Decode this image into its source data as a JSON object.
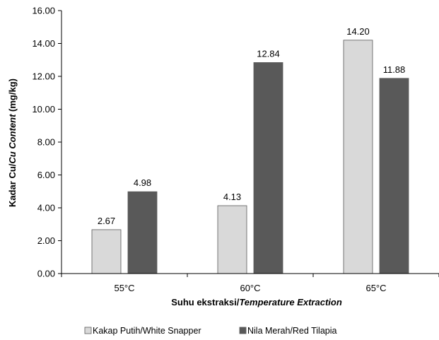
{
  "chart_data": {
    "type": "bar",
    "categories": [
      "55°C",
      "60°C",
      "65°C"
    ],
    "series": [
      {
        "name": "Kakap Putih/White Snapper",
        "values": [
          2.67,
          4.13,
          14.2
        ],
        "labels": [
          "2.67",
          "4.13",
          "14.20"
        ],
        "color": "#d9d9d9"
      },
      {
        "name": "Nila Merah/Red Tilapia",
        "values": [
          4.98,
          12.84,
          11.88
        ],
        "labels": [
          "4.98",
          "12.84",
          "11.88"
        ],
        "color": "#595959"
      }
    ],
    "xlabel": {
      "plain": "Suhu ekstraksi/",
      "italic": "Temperature Extraction"
    },
    "ylabel": {
      "part1": "Kadar Cu/",
      "part2_italic": "Cu Content",
      "part3": " (mg/kg)"
    },
    "ylim": [
      0,
      16
    ],
    "yticks": [
      "0.00",
      "2.00",
      "4.00",
      "6.00",
      "8.00",
      "10.00",
      "12.00",
      "14.00",
      "16.00"
    ],
    "ytick_values": [
      0,
      2,
      4,
      6,
      8,
      10,
      12,
      14,
      16
    ],
    "grid": false,
    "legend_position": "bottom"
  }
}
